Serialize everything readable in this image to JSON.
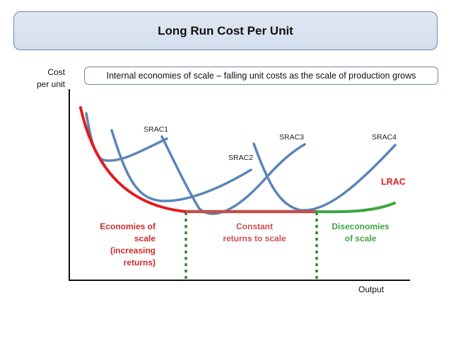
{
  "title": "Long Run Cost Per Unit",
  "subtitle": "Internal economies of scale – falling unit costs as the scale of production grows",
  "axes": {
    "y_label_line1": "Cost",
    "y_label_line2": "per unit",
    "x_label": "Output"
  },
  "curves": {
    "srac1": "SRAC1",
    "srac2": "SRAC2",
    "srac3": "SRAC3",
    "srac4": "SRAC4",
    "lrac": "LRAC"
  },
  "regions": {
    "economies_line1": "Economies of",
    "economies_line2": "scale",
    "economies_line3": "(increasing",
    "economies_line4": "returns)",
    "constant_line1": "Constant",
    "constant_line2": "returns to scale",
    "diseconomies_line1": "Diseconomies",
    "diseconomies_line2": "of scale"
  },
  "colors": {
    "lrac": "#e21b1b",
    "srac": "#5b85b7",
    "constant": "#c0504d",
    "diseconomies": "#3ea53e"
  }
}
